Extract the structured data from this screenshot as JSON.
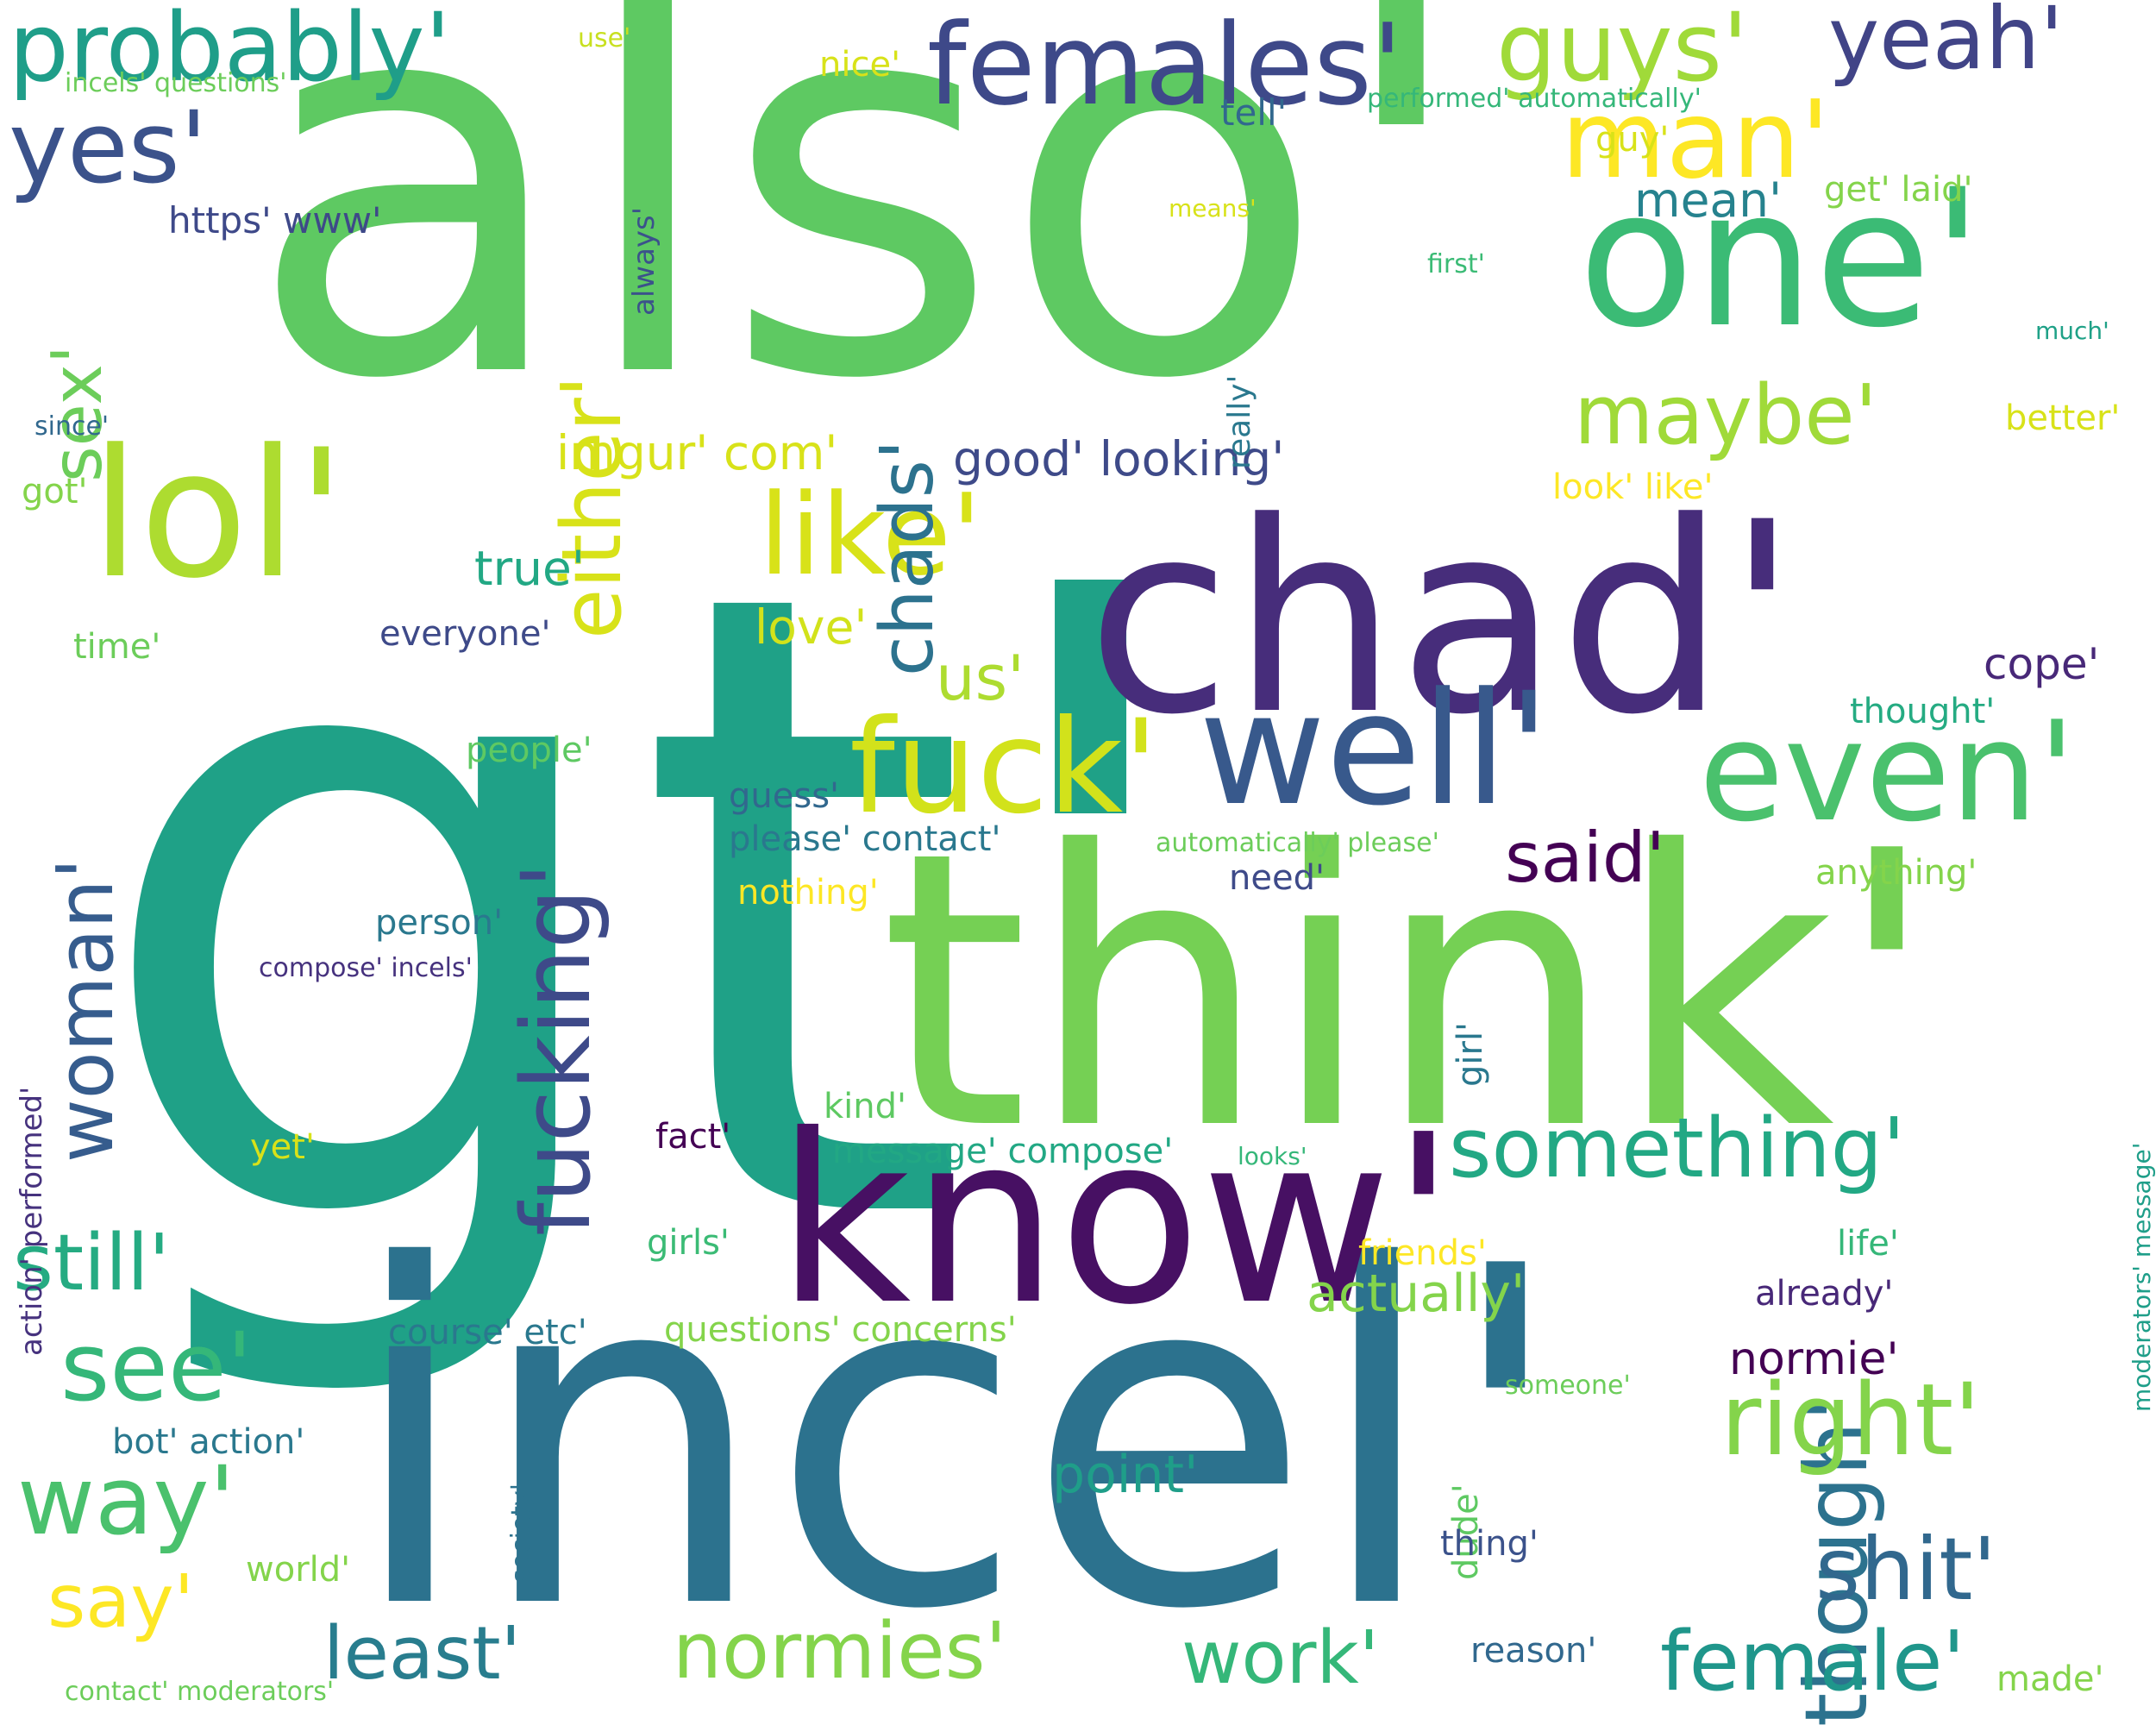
{
  "palette": {
    "dark_purple": "#440154",
    "purple": "#46327e",
    "indigo": "#3b528b",
    "blue": "#365c8d",
    "teal_blue": "#2c728e",
    "teal": "#21918c",
    "sea_green": "#1fa187",
    "green": "#3bbb75",
    "light_green": "#5ec962",
    "lime": "#85d54a",
    "yellow_green": "#addc30",
    "yellow": "#dde318"
  },
  "words": [
    {
      "text": "gt'",
      "color": "#1fa187"
    },
    {
      "text": "also'",
      "color": "#5ec962"
    },
    {
      "text": "incel'",
      "color": "#2c728e"
    },
    {
      "text": "think'",
      "color": "#75d054"
    },
    {
      "text": "chad'",
      "color": "#472d7b"
    },
    {
      "text": "know'",
      "color": "#471063"
    },
    {
      "text": "one'",
      "color": "#3bbb75"
    },
    {
      "text": "lol'",
      "color": "#addc30"
    },
    {
      "text": "well'",
      "color": "#38598c"
    },
    {
      "text": "even'",
      "color": "#4ac16d"
    },
    {
      "text": "fuck'",
      "color": "#d2e21b"
    },
    {
      "text": "females'",
      "color": "#3e4989"
    },
    {
      "text": "man'",
      "color": "#fde725"
    },
    {
      "text": "probably'",
      "color": "#1f9e89"
    },
    {
      "text": "yes'",
      "color": "#3b528b"
    },
    {
      "text": "guys'",
      "color": "#a0da39"
    },
    {
      "text": "yeah'",
      "color": "#414487"
    },
    {
      "text": "like'",
      "color": "#d8e219"
    },
    {
      "text": "fucking'",
      "color": "#3e4a89"
    },
    {
      "text": "either'",
      "color": "#d8e219"
    },
    {
      "text": "chads'",
      "color": "#2c728e"
    },
    {
      "text": "woman'",
      "color": "#365c8d"
    },
    {
      "text": "sex'",
      "color": "#6ccd5a"
    },
    {
      "text": "though'",
      "color": "#2c728e"
    },
    {
      "text": "something'",
      "color": "#22a884"
    },
    {
      "text": "maybe'",
      "color": "#a0da39"
    },
    {
      "text": "right'",
      "color": "#84d44b"
    },
    {
      "text": "see'",
      "color": "#35b779"
    },
    {
      "text": "way'",
      "color": "#4ac16d"
    },
    {
      "text": "shit'",
      "color": "#31688e"
    },
    {
      "text": "female'",
      "color": "#1f968b"
    },
    {
      "text": "still'",
      "color": "#25ab82"
    },
    {
      "text": "least'",
      "color": "#287d8e"
    },
    {
      "text": "normies'",
      "color": "#84d44b"
    },
    {
      "text": "work'",
      "color": "#35b779"
    },
    {
      "text": "say'",
      "color": "#fde725"
    },
    {
      "text": "said'",
      "color": "#440154"
    },
    {
      "text": "us'",
      "color": "#addc30"
    },
    {
      "text": "actually'",
      "color": "#84d44b"
    },
    {
      "text": "point'",
      "color": "#1f9e89"
    },
    {
      "text": "normie'",
      "color": "#440154"
    },
    {
      "text": "imgur' com'",
      "color": "#d8e219"
    },
    {
      "text": "good' looking'",
      "color": "#3e4a89"
    },
    {
      "text": "true'",
      "color": "#22a884"
    },
    {
      "text": "love'",
      "color": "#d2e21b"
    },
    {
      "text": "mean'",
      "color": "#26828e"
    },
    {
      "text": "cope'",
      "color": "#482878"
    },
    {
      "text": "https' www'",
      "color": "#3e4989"
    },
    {
      "text": "nice'",
      "color": "#d8e219"
    },
    {
      "text": "use'",
      "color": "#c8e020"
    },
    {
      "text": "incels' questions'",
      "color": "#6ccd5a"
    },
    {
      "text": "always'",
      "color": "#3b528b"
    },
    {
      "text": "tell'",
      "color": "#31688e"
    },
    {
      "text": "performed' automatically'",
      "color": "#35b779"
    },
    {
      "text": "guy'",
      "color": "#d8e219"
    },
    {
      "text": "get' laid'",
      "color": "#84d44b"
    },
    {
      "text": "means'",
      "color": "#d8e219"
    },
    {
      "text": "first'",
      "color": "#3bbb75"
    },
    {
      "text": "really'",
      "color": "#2a788e"
    },
    {
      "text": "much'",
      "color": "#1fa187"
    },
    {
      "text": "better'",
      "color": "#d8e219"
    },
    {
      "text": "since'",
      "color": "#31688e"
    },
    {
      "text": "got'",
      "color": "#84d44b"
    },
    {
      "text": "look' like'",
      "color": "#fde725"
    },
    {
      "text": "time'",
      "color": "#6ccd5a"
    },
    {
      "text": "everyone'",
      "color": "#3e4a89"
    },
    {
      "text": "thought'",
      "color": "#25ab82"
    },
    {
      "text": "people'",
      "color": "#5ec962"
    },
    {
      "text": "guess'",
      "color": "#31688e"
    },
    {
      "text": "please' contact'",
      "color": "#2a788e"
    },
    {
      "text": "automatically' please'",
      "color": "#6ccd5a"
    },
    {
      "text": "need'",
      "color": "#3e4a89"
    },
    {
      "text": "anything'",
      "color": "#84d44b"
    },
    {
      "text": "nothing'",
      "color": "#fde725"
    },
    {
      "text": "person'",
      "color": "#2a788e"
    },
    {
      "text": "compose' incels'",
      "color": "#46327e"
    },
    {
      "text": "girl'",
      "color": "#2a788e"
    },
    {
      "text": "moderators' message'",
      "color": "#1f9e89"
    },
    {
      "text": "action' performed'",
      "color": "#46327e"
    },
    {
      "text": "kind'",
      "color": "#5ec962"
    },
    {
      "text": "fact'",
      "color": "#440154"
    },
    {
      "text": "message' compose'",
      "color": "#22a884"
    },
    {
      "text": "looks'",
      "color": "#35b779"
    },
    {
      "text": "yet'",
      "color": "#d8e219"
    },
    {
      "text": "girls'",
      "color": "#3bbb75"
    },
    {
      "text": "friends'",
      "color": "#fde725"
    },
    {
      "text": "life'",
      "color": "#35b779"
    },
    {
      "text": "already'",
      "color": "#482878"
    },
    {
      "text": "course' etc'",
      "color": "#2a788e"
    },
    {
      "text": "questions' concerns'",
      "color": "#84d44b"
    },
    {
      "text": "someone'",
      "color": "#6ccd5a"
    },
    {
      "text": "society'",
      "color": "#2c728e"
    },
    {
      "text": "bot' action'",
      "color": "#2a788e"
    },
    {
      "text": "dude'",
      "color": "#5ec962"
    },
    {
      "text": "thing'",
      "color": "#3b528b"
    },
    {
      "text": "world'",
      "color": "#84d44b"
    },
    {
      "text": "reason'",
      "color": "#31688e"
    },
    {
      "text": "made'",
      "color": "#84d44b"
    },
    {
      "text": "contact' moderators'",
      "color": "#6ccd5a"
    }
  ]
}
